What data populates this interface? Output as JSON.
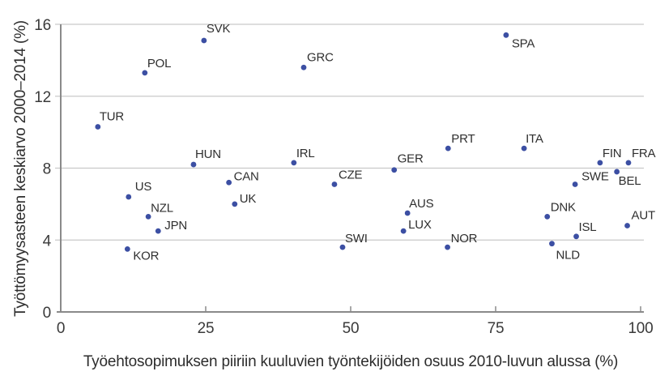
{
  "chart_data": {
    "type": "scatter",
    "title": "",
    "xlabel": "Työehtosopimuksen piiriin kuuluvien työntekijöiden osuus 2010-luvun alussa (%)",
    "ylabel": "Työttömyysasteen keskiarvo 2000–2014 (%)",
    "xlim": [
      0,
      100
    ],
    "ylim": [
      0,
      16
    ],
    "xticks": [
      0,
      25,
      50,
      75,
      100
    ],
    "yticks": [
      0,
      4,
      8,
      12,
      16
    ],
    "grid": "horizontal gridlines at y = 4, 8, 12, 16",
    "legend": "none",
    "point_color": "#3c4fa3",
    "grid_color": "#c9c9c9",
    "axis_color": "#8a8a8a",
    "points": [
      {
        "label": "TUR",
        "x": 6.4,
        "y": 10.3,
        "label_offset": [
          2,
          -8
        ]
      },
      {
        "label": "KOR",
        "x": 11.5,
        "y": 3.5,
        "label_offset": [
          7,
          13
        ]
      },
      {
        "label": "US",
        "x": 11.7,
        "y": 6.4,
        "label_offset": [
          8,
          -8
        ]
      },
      {
        "label": "POL",
        "x": 14.5,
        "y": 13.3,
        "label_offset": [
          3,
          -7
        ]
      },
      {
        "label": "NZL",
        "x": 15.1,
        "y": 5.3,
        "label_offset": [
          3,
          -6
        ]
      },
      {
        "label": "JPN",
        "x": 16.8,
        "y": 4.5,
        "label_offset": [
          8,
          -2
        ]
      },
      {
        "label": "HUN",
        "x": 22.9,
        "y": 8.2,
        "label_offset": [
          2,
          -8
        ]
      },
      {
        "label": "SVK",
        "x": 24.7,
        "y": 15.1,
        "label_offset": [
          3,
          -10
        ]
      },
      {
        "label": "CAN",
        "x": 29.0,
        "y": 7.2,
        "label_offset": [
          6,
          -3
        ]
      },
      {
        "label": "UK",
        "x": 30.0,
        "y": 6.0,
        "label_offset": [
          6,
          -2
        ]
      },
      {
        "label": "IRL",
        "x": 40.2,
        "y": 8.3,
        "label_offset": [
          3,
          -7
        ]
      },
      {
        "label": "GRC",
        "x": 41.9,
        "y": 13.6,
        "label_offset": [
          4,
          -8
        ]
      },
      {
        "label": "CZE",
        "x": 47.2,
        "y": 7.1,
        "label_offset": [
          5,
          -7
        ]
      },
      {
        "label": "SWI",
        "x": 48.6,
        "y": 3.6,
        "label_offset": [
          3,
          -6
        ]
      },
      {
        "label": "GER",
        "x": 57.5,
        "y": 7.9,
        "label_offset": [
          4,
          -9
        ]
      },
      {
        "label": "LUX",
        "x": 59.1,
        "y": 4.5,
        "label_offset": [
          6,
          -3
        ]
      },
      {
        "label": "AUS",
        "x": 59.8,
        "y": 5.5,
        "label_offset": [
          2,
          -7
        ]
      },
      {
        "label": "NOR",
        "x": 66.7,
        "y": 3.6,
        "label_offset": [
          4,
          -6
        ]
      },
      {
        "label": "PRT",
        "x": 66.8,
        "y": 9.1,
        "label_offset": [
          4,
          -7
        ]
      },
      {
        "label": "SPA",
        "x": 76.8,
        "y": 15.4,
        "label_offset": [
          7,
          15
        ]
      },
      {
        "label": "ITA",
        "x": 79.9,
        "y": 9.1,
        "label_offset": [
          2,
          -7
        ]
      },
      {
        "label": "DNK",
        "x": 83.9,
        "y": 5.3,
        "label_offset": [
          4,
          -7
        ]
      },
      {
        "label": "NLD",
        "x": 84.7,
        "y": 3.8,
        "label_offset": [
          5,
          19
        ]
      },
      {
        "label": "SWE",
        "x": 88.7,
        "y": 7.1,
        "label_offset": [
          8,
          -5
        ]
      },
      {
        "label": "ISL",
        "x": 88.9,
        "y": 4.2,
        "label_offset": [
          3,
          -7
        ]
      },
      {
        "label": "FIN",
        "x": 93.0,
        "y": 8.3,
        "label_offset": [
          3,
          -7
        ]
      },
      {
        "label": "BEL",
        "x": 95.9,
        "y": 7.8,
        "label_offset": [
          2,
          16
        ]
      },
      {
        "label": "FRA",
        "x": 97.9,
        "y": 8.3,
        "label_offset": [
          4,
          -7
        ]
      },
      {
        "label": "AUT",
        "x": 97.7,
        "y": 4.8,
        "label_offset": [
          5,
          -8
        ]
      }
    ]
  }
}
